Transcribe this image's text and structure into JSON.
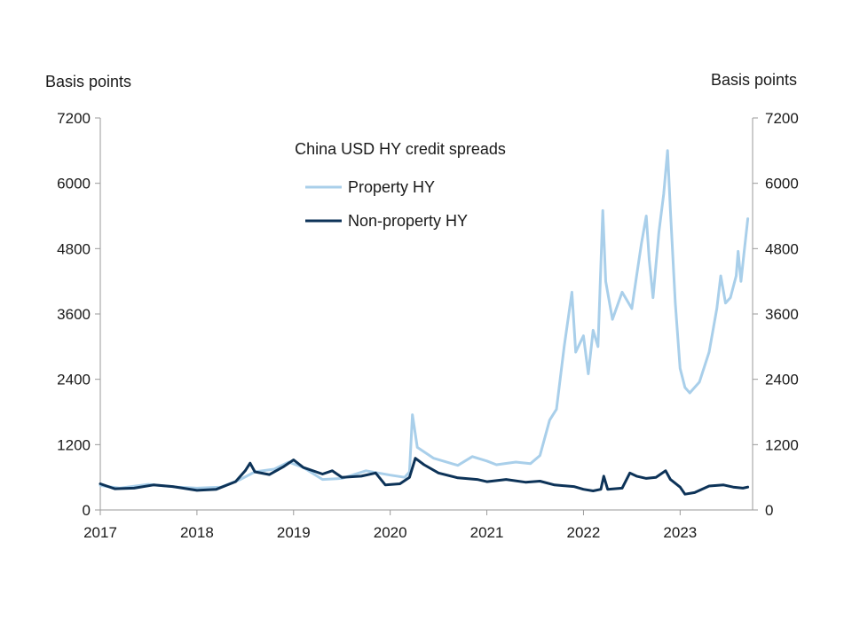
{
  "chart_data": {
    "type": "line",
    "title": "China USD HY credit spreads",
    "ylabel_left": "Basis points",
    "ylabel_right": "Basis points",
    "xlabel": "",
    "x_ticks": [
      "2017",
      "2018",
      "2019",
      "2020",
      "2021",
      "2022",
      "2023"
    ],
    "y_ticks": [
      "0",
      "1200",
      "2400",
      "3600",
      "4800",
      "6000",
      "7200"
    ],
    "xlim": [
      2017.0,
      2023.75
    ],
    "ylim": [
      0,
      7200
    ],
    "grid": false,
    "legend_position": "top-center",
    "series": [
      {
        "name": "Property HY",
        "color": "#a9cfea",
        "points": [
          [
            2017.0,
            450
          ],
          [
            2017.2,
            400
          ],
          [
            2017.5,
            470
          ],
          [
            2017.8,
            420
          ],
          [
            2018.0,
            400
          ],
          [
            2018.25,
            420
          ],
          [
            2018.45,
            560
          ],
          [
            2018.6,
            700
          ],
          [
            2018.8,
            750
          ],
          [
            2018.95,
            880
          ],
          [
            2019.1,
            780
          ],
          [
            2019.3,
            560
          ],
          [
            2019.5,
            580
          ],
          [
            2019.75,
            720
          ],
          [
            2020.0,
            640
          ],
          [
            2020.15,
            600
          ],
          [
            2020.2,
            700
          ],
          [
            2020.23,
            1750
          ],
          [
            2020.28,
            1150
          ],
          [
            2020.45,
            950
          ],
          [
            2020.7,
            820
          ],
          [
            2020.85,
            980
          ],
          [
            2021.0,
            900
          ],
          [
            2021.1,
            830
          ],
          [
            2021.3,
            880
          ],
          [
            2021.45,
            850
          ],
          [
            2021.55,
            1000
          ],
          [
            2021.65,
            1650
          ],
          [
            2021.72,
            1850
          ],
          [
            2021.8,
            3000
          ],
          [
            2021.88,
            4000
          ],
          [
            2021.92,
            2900
          ],
          [
            2022.0,
            3200
          ],
          [
            2022.05,
            2500
          ],
          [
            2022.1,
            3300
          ],
          [
            2022.15,
            3000
          ],
          [
            2022.2,
            5500
          ],
          [
            2022.23,
            4200
          ],
          [
            2022.3,
            3500
          ],
          [
            2022.4,
            4000
          ],
          [
            2022.5,
            3700
          ],
          [
            2022.55,
            4300
          ],
          [
            2022.6,
            4900
          ],
          [
            2022.65,
            5400
          ],
          [
            2022.68,
            4600
          ],
          [
            2022.72,
            3900
          ],
          [
            2022.78,
            5100
          ],
          [
            2022.83,
            5800
          ],
          [
            2022.87,
            6600
          ],
          [
            2022.9,
            5500
          ],
          [
            2022.95,
            3800
          ],
          [
            2023.0,
            2600
          ],
          [
            2023.05,
            2250
          ],
          [
            2023.1,
            2150
          ],
          [
            2023.2,
            2350
          ],
          [
            2023.3,
            2900
          ],
          [
            2023.38,
            3700
          ],
          [
            2023.42,
            4300
          ],
          [
            2023.47,
            3800
          ],
          [
            2023.52,
            3900
          ],
          [
            2023.58,
            4300
          ],
          [
            2023.6,
            4750
          ],
          [
            2023.63,
            4200
          ],
          [
            2023.66,
            4700
          ],
          [
            2023.7,
            5350
          ]
        ]
      },
      {
        "name": "Non-property HY",
        "color": "#0d3358",
        "points": [
          [
            2017.0,
            480
          ],
          [
            2017.15,
            390
          ],
          [
            2017.35,
            400
          ],
          [
            2017.55,
            460
          ],
          [
            2017.75,
            430
          ],
          [
            2018.0,
            360
          ],
          [
            2018.2,
            380
          ],
          [
            2018.4,
            520
          ],
          [
            2018.5,
            720
          ],
          [
            2018.55,
            860
          ],
          [
            2018.6,
            700
          ],
          [
            2018.75,
            650
          ],
          [
            2018.9,
            800
          ],
          [
            2019.0,
            920
          ],
          [
            2019.1,
            780
          ],
          [
            2019.3,
            660
          ],
          [
            2019.4,
            720
          ],
          [
            2019.5,
            600
          ],
          [
            2019.7,
            620
          ],
          [
            2019.85,
            680
          ],
          [
            2019.95,
            460
          ],
          [
            2020.1,
            480
          ],
          [
            2020.2,
            600
          ],
          [
            2020.26,
            950
          ],
          [
            2020.35,
            830
          ],
          [
            2020.5,
            680
          ],
          [
            2020.7,
            590
          ],
          [
            2020.9,
            560
          ],
          [
            2021.0,
            520
          ],
          [
            2021.2,
            560
          ],
          [
            2021.4,
            510
          ],
          [
            2021.55,
            530
          ],
          [
            2021.7,
            460
          ],
          [
            2021.9,
            430
          ],
          [
            2022.0,
            380
          ],
          [
            2022.1,
            350
          ],
          [
            2022.18,
            380
          ],
          [
            2022.21,
            620
          ],
          [
            2022.25,
            380
          ],
          [
            2022.4,
            400
          ],
          [
            2022.48,
            680
          ],
          [
            2022.55,
            620
          ],
          [
            2022.65,
            580
          ],
          [
            2022.75,
            600
          ],
          [
            2022.85,
            720
          ],
          [
            2022.9,
            560
          ],
          [
            2023.0,
            420
          ],
          [
            2023.05,
            290
          ],
          [
            2023.15,
            320
          ],
          [
            2023.3,
            440
          ],
          [
            2023.45,
            460
          ],
          [
            2023.55,
            420
          ],
          [
            2023.65,
            400
          ],
          [
            2023.7,
            420
          ]
        ]
      }
    ]
  }
}
